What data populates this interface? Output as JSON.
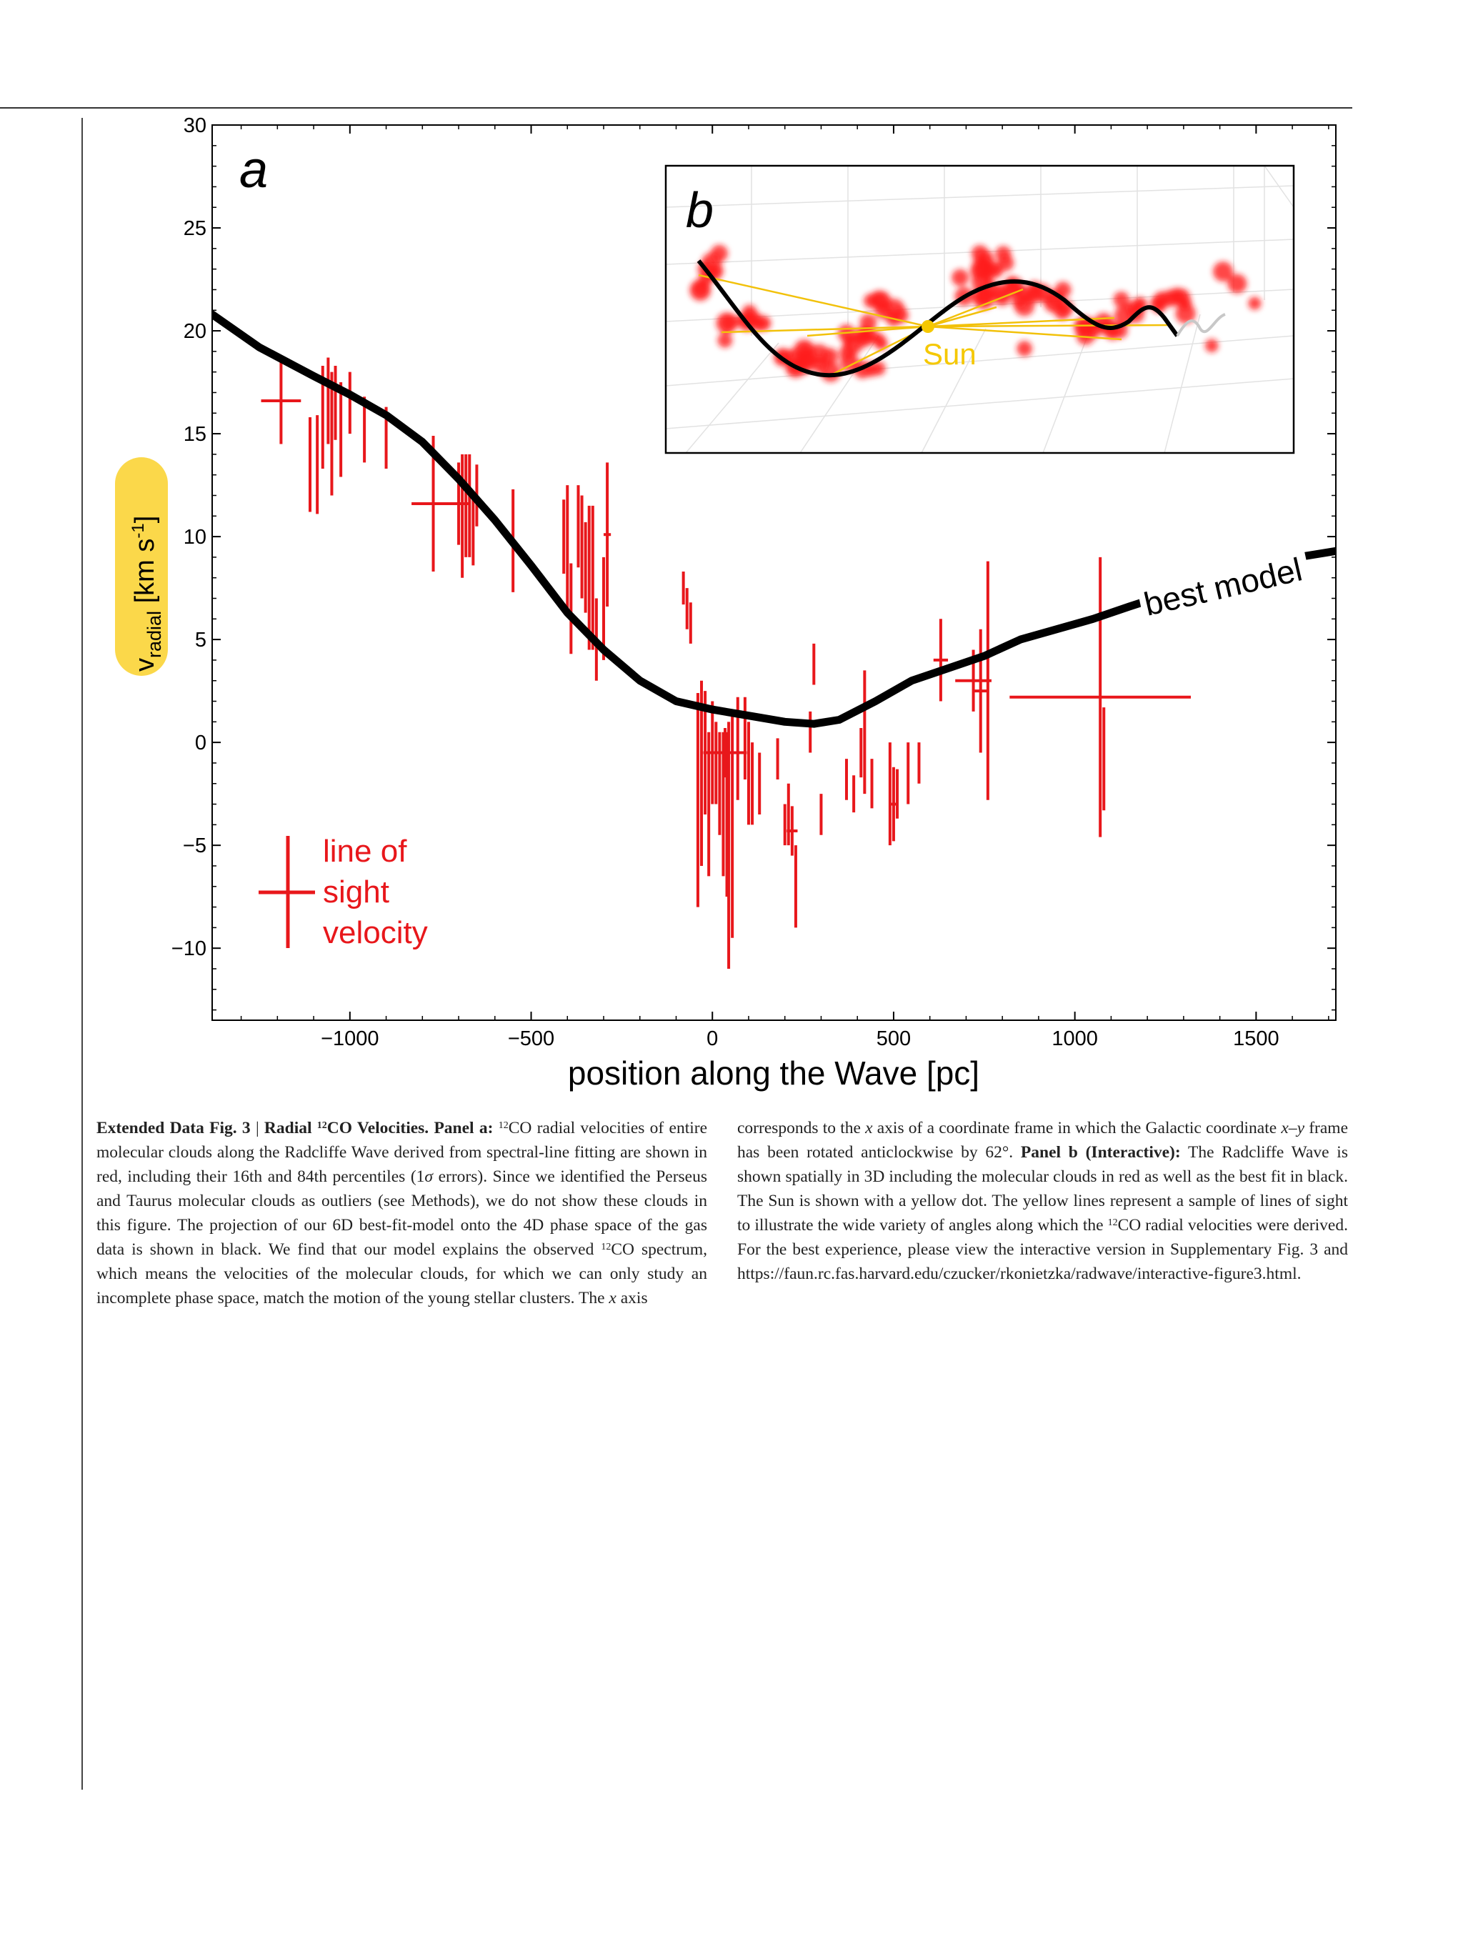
{
  "chart_data": [
    {
      "type": "scatter",
      "panel_label": "a",
      "xlabel": "position along the Wave [pc]",
      "ylabel": "v_radial [km s^-1]",
      "ylabel_parts": {
        "v": "v",
        "sub": "radial",
        "unit": "[km s",
        "exp": "-1",
        "close": "]"
      },
      "xlim": [
        -1380,
        1720
      ],
      "ylim": [
        -13.5,
        30
      ],
      "xticks": [
        -1000,
        -500,
        0,
        500,
        1000,
        1500
      ],
      "xtick_labels": [
        "−1000",
        "−500",
        "0",
        "500",
        "1000",
        "1500"
      ],
      "yticks": [
        -10,
        -5,
        0,
        5,
        10,
        15,
        20,
        25,
        30
      ],
      "ytick_labels": [
        "−10",
        "−5",
        "0",
        "5",
        "10",
        "15",
        "20",
        "25",
        "30"
      ],
      "legend": {
        "label_lines": [
          "line of",
          "sight",
          "velocity"
        ],
        "position": "lower-left",
        "color": "#e8171b"
      },
      "model": {
        "label": "best model",
        "color": "#000000",
        "x": [
          -1380,
          -1250,
          -1100,
          -1000,
          -900,
          -800,
          -700,
          -600,
          -500,
          -400,
          -300,
          -200,
          -100,
          0,
          100,
          200,
          280,
          350,
          450,
          550,
          650,
          750,
          850,
          950,
          1050,
          1150,
          1220,
          1300,
          1400,
          1500,
          1580,
          1720
        ],
        "y": [
          20.8,
          19.2,
          17.8,
          16.9,
          15.9,
          14.6,
          12.8,
          10.8,
          8.6,
          6.3,
          4.5,
          3.0,
          2.0,
          1.6,
          1.3,
          1.0,
          0.9,
          1.1,
          2.0,
          3.0,
          3.6,
          4.2,
          5.0,
          5.5,
          6.0,
          6.6,
          7.0,
          7.5,
          8.0,
          8.5,
          8.9,
          9.3
        ]
      },
      "points": [
        {
          "x": -1190,
          "y": 16.6,
          "xerr": 55,
          "yerr": [
            2.1,
            2.1
          ]
        },
        {
          "x": -1110,
          "y": 13.5,
          "xerr": 0,
          "yerr": [
            2.3,
            2.3
          ]
        },
        {
          "x": -1090,
          "y": 13.5,
          "xerr": 0,
          "yerr": [
            2.4,
            2.4
          ]
        },
        {
          "x": -1075,
          "y": 15.8,
          "xerr": 0,
          "yerr": [
            2.5,
            2.5
          ]
        },
        {
          "x": -1060,
          "y": 16.6,
          "xerr": 0,
          "yerr": [
            2.1,
            2.1
          ]
        },
        {
          "x": -1050,
          "y": 15.0,
          "xerr": 0,
          "yerr": [
            3.0,
            3.0
          ]
        },
        {
          "x": -1040,
          "y": 16.5,
          "xerr": 0,
          "yerr": [
            1.8,
            1.8
          ]
        },
        {
          "x": -1025,
          "y": 15.2,
          "xerr": 0,
          "yerr": [
            2.3,
            2.3
          ]
        },
        {
          "x": -1000,
          "y": 16.5,
          "xerr": 0,
          "yerr": [
            1.5,
            1.5
          ]
        },
        {
          "x": -960,
          "y": 15.2,
          "xerr": 0,
          "yerr": [
            1.6,
            1.6
          ]
        },
        {
          "x": -900,
          "y": 14.8,
          "xerr": 0,
          "yerr": [
            1.5,
            1.5
          ]
        },
        {
          "x": -770,
          "y": 11.6,
          "xerr": 60,
          "yerr": [
            3.3,
            3.3
          ]
        },
        {
          "x": -700,
          "y": 11.6,
          "xerr": 30,
          "yerr": [
            2.0,
            2.0
          ]
        },
        {
          "x": -690,
          "y": 11.0,
          "xerr": 0,
          "yerr": [
            3.0,
            3.0
          ]
        },
        {
          "x": -680,
          "y": 11.5,
          "xerr": 0,
          "yerr": [
            2.5,
            2.5
          ]
        },
        {
          "x": -670,
          "y": 11.5,
          "xerr": 0,
          "yerr": [
            2.5,
            2.5
          ]
        },
        {
          "x": -660,
          "y": 10.2,
          "xerr": 0,
          "yerr": [
            1.6,
            1.6
          ]
        },
        {
          "x": -650,
          "y": 12.0,
          "xerr": 0,
          "yerr": [
            1.5,
            1.5
          ]
        },
        {
          "x": -550,
          "y": 9.8,
          "xerr": 0,
          "yerr": [
            2.5,
            2.5
          ]
        },
        {
          "x": -410,
          "y": 10.0,
          "xerr": 0,
          "yerr": [
            1.8,
            1.8
          ]
        },
        {
          "x": -400,
          "y": 9.5,
          "xerr": 0,
          "yerr": [
            3.0,
            3.0
          ]
        },
        {
          "x": -390,
          "y": 6.5,
          "xerr": 0,
          "yerr": [
            2.2,
            2.2
          ]
        },
        {
          "x": -370,
          "y": 10.5,
          "xerr": 0,
          "yerr": [
            2.0,
            2.0
          ]
        },
        {
          "x": -360,
          "y": 9.5,
          "xerr": 0,
          "yerr": [
            2.5,
            2.5
          ]
        },
        {
          "x": -350,
          "y": 8.5,
          "xerr": 0,
          "yerr": [
            2.2,
            2.2
          ]
        },
        {
          "x": -340,
          "y": 8.0,
          "xerr": 0,
          "yerr": [
            3.5,
            3.5
          ]
        },
        {
          "x": -330,
          "y": 8.0,
          "xerr": 0,
          "yerr": [
            3.5,
            3.5
          ]
        },
        {
          "x": -320,
          "y": 5.0,
          "xerr": 0,
          "yerr": [
            2.0,
            2.0
          ]
        },
        {
          "x": -300,
          "y": 6.5,
          "xerr": 0,
          "yerr": [
            2.5,
            2.5
          ]
        },
        {
          "x": -290,
          "y": 10.1,
          "xerr": 10,
          "yerr": [
            3.5,
            3.5
          ]
        },
        {
          "x": -80,
          "y": 7.5,
          "xerr": 0,
          "yerr": [
            0.8,
            0.8
          ]
        },
        {
          "x": -70,
          "y": 6.5,
          "xerr": 0,
          "yerr": [
            1.0,
            1.0
          ]
        },
        {
          "x": -60,
          "y": 5.8,
          "xerr": 0,
          "yerr": [
            1.0,
            1.0
          ]
        },
        {
          "x": -40,
          "y": -2.8,
          "xerr": 0,
          "yerr": [
            5.2,
            5.2
          ]
        },
        {
          "x": -30,
          "y": -1.5,
          "xerr": 0,
          "yerr": [
            4.5,
            4.5
          ]
        },
        {
          "x": -20,
          "y": -0.5,
          "xerr": 0,
          "yerr": [
            3.0,
            3.0
          ]
        },
        {
          "x": -10,
          "y": -3.0,
          "xerr": 0,
          "yerr": [
            3.5,
            3.5
          ]
        },
        {
          "x": 0,
          "y": -0.5,
          "xerr": 0,
          "yerr": [
            2.5,
            2.5
          ]
        },
        {
          "x": 10,
          "y": -1.0,
          "xerr": 0,
          "yerr": [
            2.0,
            2.0
          ]
        },
        {
          "x": 20,
          "y": -2.0,
          "xerr": 0,
          "yerr": [
            2.5,
            2.5
          ]
        },
        {
          "x": 30,
          "y": -3.0,
          "xerr": 0,
          "yerr": [
            3.5,
            3.5
          ]
        },
        {
          "x": 40,
          "y": -3.5,
          "xerr": 0,
          "yerr": [
            4.0,
            4.0
          ]
        },
        {
          "x": 45,
          "y": -5.0,
          "xerr": 0,
          "yerr": [
            6.0,
            6.0
          ]
        },
        {
          "x": 55,
          "y": -4.0,
          "xerr": 0,
          "yerr": [
            5.5,
            5.5
          ]
        },
        {
          "x": 35,
          "y": -0.5,
          "xerr": 60,
          "yerr": [
            1.2,
            1.2
          ]
        },
        {
          "x": 70,
          "y": -0.3,
          "xerr": 0,
          "yerr": [
            2.5,
            2.5
          ]
        },
        {
          "x": 90,
          "y": 0.2,
          "xerr": 0,
          "yerr": [
            2.0,
            2.0
          ]
        },
        {
          "x": 100,
          "y": -1.5,
          "xerr": 0,
          "yerr": [
            2.5,
            2.5
          ]
        },
        {
          "x": 110,
          "y": -2.0,
          "xerr": 0,
          "yerr": [
            2.0,
            2.0
          ]
        },
        {
          "x": 130,
          "y": -2.0,
          "xerr": 0,
          "yerr": [
            1.5,
            1.5
          ]
        },
        {
          "x": 180,
          "y": -0.8,
          "xerr": 0,
          "yerr": [
            1.0,
            1.0
          ]
        },
        {
          "x": 200,
          "y": -4.0,
          "xerr": 0,
          "yerr": [
            1.0,
            1.0
          ]
        },
        {
          "x": 210,
          "y": -3.5,
          "xerr": 0,
          "yerr": [
            1.5,
            1.5
          ]
        },
        {
          "x": 220,
          "y": -4.3,
          "xerr": 15,
          "yerr": [
            1.2,
            1.2
          ]
        },
        {
          "x": 230,
          "y": -7.0,
          "xerr": 0,
          "yerr": [
            2.0,
            2.0
          ]
        },
        {
          "x": 270,
          "y": 0.5,
          "xerr": 0,
          "yerr": [
            1.0,
            1.0
          ]
        },
        {
          "x": 280,
          "y": 3.8,
          "xerr": 0,
          "yerr": [
            1.0,
            1.0
          ]
        },
        {
          "x": 300,
          "y": -3.5,
          "xerr": 0,
          "yerr": [
            1.0,
            1.0
          ]
        },
        {
          "x": 370,
          "y": -1.8,
          "xerr": 0,
          "yerr": [
            1.0,
            1.0
          ]
        },
        {
          "x": 390,
          "y": -2.5,
          "xerr": 0,
          "yerr": [
            0.9,
            0.9
          ]
        },
        {
          "x": 410,
          "y": -0.5,
          "xerr": 0,
          "yerr": [
            1.2,
            1.2
          ]
        },
        {
          "x": 420,
          "y": 0.5,
          "xerr": 0,
          "yerr": [
            3.0,
            3.0
          ]
        },
        {
          "x": 440,
          "y": -2.0,
          "xerr": 0,
          "yerr": [
            1.2,
            1.2
          ]
        },
        {
          "x": 490,
          "y": -2.5,
          "xerr": 0,
          "yerr": [
            2.5,
            2.5
          ]
        },
        {
          "x": 500,
          "y": -3.0,
          "xerr": 10,
          "yerr": [
            1.8,
            1.8
          ]
        },
        {
          "x": 510,
          "y": -2.5,
          "xerr": 0,
          "yerr": [
            1.2,
            1.2
          ]
        },
        {
          "x": 540,
          "y": -1.5,
          "xerr": 0,
          "yerr": [
            1.5,
            1.5
          ]
        },
        {
          "x": 570,
          "y": -1.0,
          "xerr": 0,
          "yerr": [
            1.0,
            1.0
          ]
        },
        {
          "x": 630,
          "y": 4.0,
          "xerr": 20,
          "yerr": [
            2.0,
            2.0
          ]
        },
        {
          "x": 720,
          "y": 3.0,
          "xerr": 50,
          "yerr": [
            1.5,
            1.5
          ]
        },
        {
          "x": 740,
          "y": 2.5,
          "xerr": 20,
          "yerr": [
            3.0,
            3.0
          ]
        },
        {
          "x": 760,
          "y": 3.0,
          "xerr": 0,
          "yerr": [
            5.8,
            5.8
          ]
        },
        {
          "x": 1070,
          "y": 2.2,
          "xerr": 250,
          "yerr": [
            6.8,
            6.8
          ]
        },
        {
          "x": 1080,
          "y": -0.8,
          "xerr": 0,
          "yerr": [
            2.5,
            2.5
          ]
        }
      ]
    },
    {
      "type": "scatter",
      "panel_label": "b",
      "sun_label": "Sun",
      "colors": {
        "clouds": "#ff1a1a",
        "best_fit": "#000000",
        "sun": "#f5c800",
        "lines": "#f2c10a"
      }
    }
  ],
  "caption": {
    "left": {
      "fig_label": "Extended Data Fig. 3",
      "sep": "|",
      "title_pre": "Radial ",
      "title_sup": "12",
      "title_post": "CO Velocities.",
      "panel_a": "Panel a:",
      "sup1": "12",
      "t1": "CO radial velocities of entire molecular clouds along the Radcliffe Wave derived from spectral-line fitting are shown in red, including their 16th and 84th percentiles (1",
      "sigma": "σ",
      "t2": " errors). Since we identified the Perseus and Taurus molecular clouds as outliers (see Methods), we do not show these clouds in this figure. The projection of our 6D best-fit-model onto the 4D phase space of the gas data is shown in black. We find that our model explains the observed ",
      "sup2": "12",
      "t3": "CO spectrum, which means the velocities of the molecular clouds, for which we can only study an incomplete phase space, match the motion of the young stellar clusters. The ",
      "x1": "x",
      "t4": " axis"
    },
    "right": {
      "t1": "corresponds to the ",
      "x1": "x",
      "t2": " axis of a coordinate frame in which the Galactic coordinate ",
      "xy": "x–y",
      "t3": " frame has been rotated anticlockwise by 62°. ",
      "panel_b": "Panel b (Interactive):",
      "t4": " The Radcliffe Wave is shown spatially in 3D including the molecular clouds in red as well as the best fit in black. The Sun is shown with a yellow dot. The yellow lines represent a sample of lines of sight to illustrate the wide variety of angles along which the ",
      "sup1": "12",
      "t5": "CO radial velocities were derived. For the best experience, please view the interactive version in Supplementary Fig. 3 and https://faun.rc.fas.harvard.edu/czucker/rkonietzka/radwave/interactive-figure3.html."
    }
  }
}
